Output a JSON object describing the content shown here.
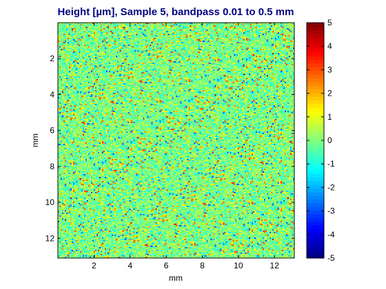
{
  "chart_data": {
    "type": "heatmap",
    "title": "Height [µm],  Sample 5,  bandpass 0.01 to 0.5 mm",
    "xlabel": "mm",
    "ylabel": "mm",
    "xlim": [
      0,
      13.1
    ],
    "ylim": [
      0,
      13.1
    ],
    "y_reversed": true,
    "x_ticks": [
      2,
      4,
      6,
      8,
      10,
      12
    ],
    "y_ticks": [
      2,
      4,
      6,
      8,
      10,
      12
    ],
    "colorbar": {
      "colormap": "jet",
      "range": [
        -5,
        5
      ],
      "ticks": [
        5,
        4,
        3,
        2,
        1,
        0,
        -1,
        -2,
        -3,
        -4,
        -5
      ]
    },
    "grid": false,
    "description": "noisy surface height map, values mostly between -1 and 1"
  }
}
